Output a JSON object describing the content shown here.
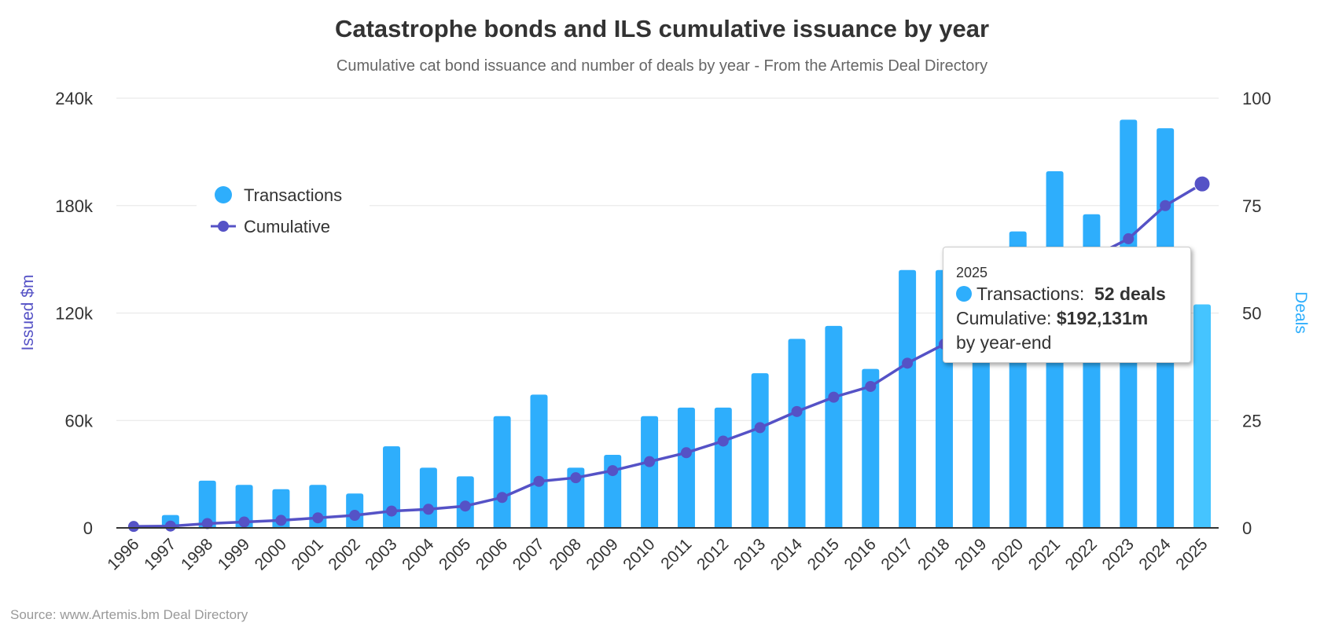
{
  "chart_data": {
    "type": "bar+line",
    "title": "Catastrophe bonds and ILS cumulative issuance by year",
    "subtitle": "Cumulative cat bond issuance and number of deals by year - From the Artemis Deal Directory",
    "credits": "Source: www.Artemis.bm Deal Directory",
    "categories": [
      "1996",
      "1997",
      "1998",
      "1999",
      "2000",
      "2001",
      "2002",
      "2003",
      "2004",
      "2005",
      "2006",
      "2007",
      "2008",
      "2009",
      "2010",
      "2011",
      "2012",
      "2013",
      "2014",
      "2015",
      "2016",
      "2017",
      "2018",
      "2019",
      "2020",
      "2021",
      "2022",
      "2023",
      "2024",
      "2025"
    ],
    "series": [
      {
        "name": "Transactions",
        "type": "bar",
        "axis": "right",
        "color": "#2eaefc",
        "values": [
          0,
          3,
          11,
          10,
          9,
          10,
          8,
          19,
          14,
          12,
          26,
          31,
          14,
          17,
          26,
          28,
          28,
          36,
          44,
          47,
          37,
          60,
          60,
          46,
          69,
          83,
          73,
          95,
          93,
          52
        ]
      },
      {
        "name": "Cumulative",
        "type": "line",
        "axis": "left",
        "color": "#5552c6",
        "values": [
          800,
          1000,
          2400,
          3300,
          4200,
          5600,
          7000,
          9400,
          10400,
          12200,
          17000,
          26000,
          28000,
          32000,
          37000,
          42000,
          48500,
          56000,
          65000,
          73000,
          79000,
          92000,
          102600,
          113000,
          124000,
          140000,
          151000,
          161500,
          180000,
          192131
        ]
      }
    ],
    "y_left": {
      "label": "Issued $m",
      "range": [
        0,
        240000
      ],
      "ticks": [
        "0",
        "60k",
        "120k",
        "180k",
        "240k"
      ],
      "color": "#5552c6"
    },
    "y_right": {
      "label": "Deals",
      "range": [
        0,
        100
      ],
      "ticks": [
        "0",
        "25",
        "50",
        "75",
        "100"
      ],
      "color": "#2eaefc"
    },
    "grid": true,
    "legend": "top-left",
    "highlight_color": "#45c4ff",
    "tooltip": {
      "header": "2025",
      "transactions_label": "Transactions:",
      "transactions_value": "52 deals",
      "cumulative_label": "Cumulative:",
      "cumulative_value": "$192,131m",
      "note": "by year-end"
    }
  }
}
